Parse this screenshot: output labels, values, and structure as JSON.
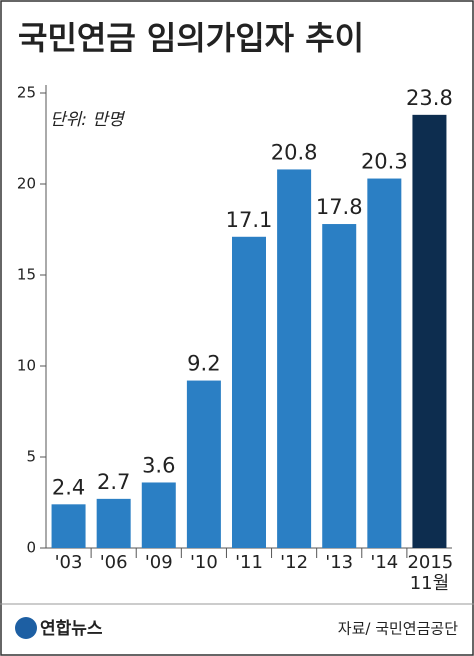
{
  "chart_data": {
    "type": "bar",
    "title": "국민연금 임의가입자 추이",
    "unit": "단위: 만명",
    "categories": [
      "'03",
      "'06",
      "'09",
      "'10",
      "'11",
      "'12",
      "'13",
      "'14",
      "2015 11월"
    ],
    "values": [
      2.4,
      2.7,
      3.6,
      9.2,
      17.1,
      20.8,
      17.8,
      20.3,
      23.8
    ],
    "colors": [
      "#2b7fc4",
      "#2b7fc4",
      "#2b7fc4",
      "#2b7fc4",
      "#2b7fc4",
      "#2b7fc4",
      "#2b7fc4",
      "#2b7fc4",
      "#0d2d4f"
    ],
    "ylim": [
      0,
      25
    ],
    "yticks": [
      0,
      5,
      10,
      15,
      20,
      25
    ],
    "source": "자료/ 국민연금공단",
    "logo": "연합뉴스"
  }
}
